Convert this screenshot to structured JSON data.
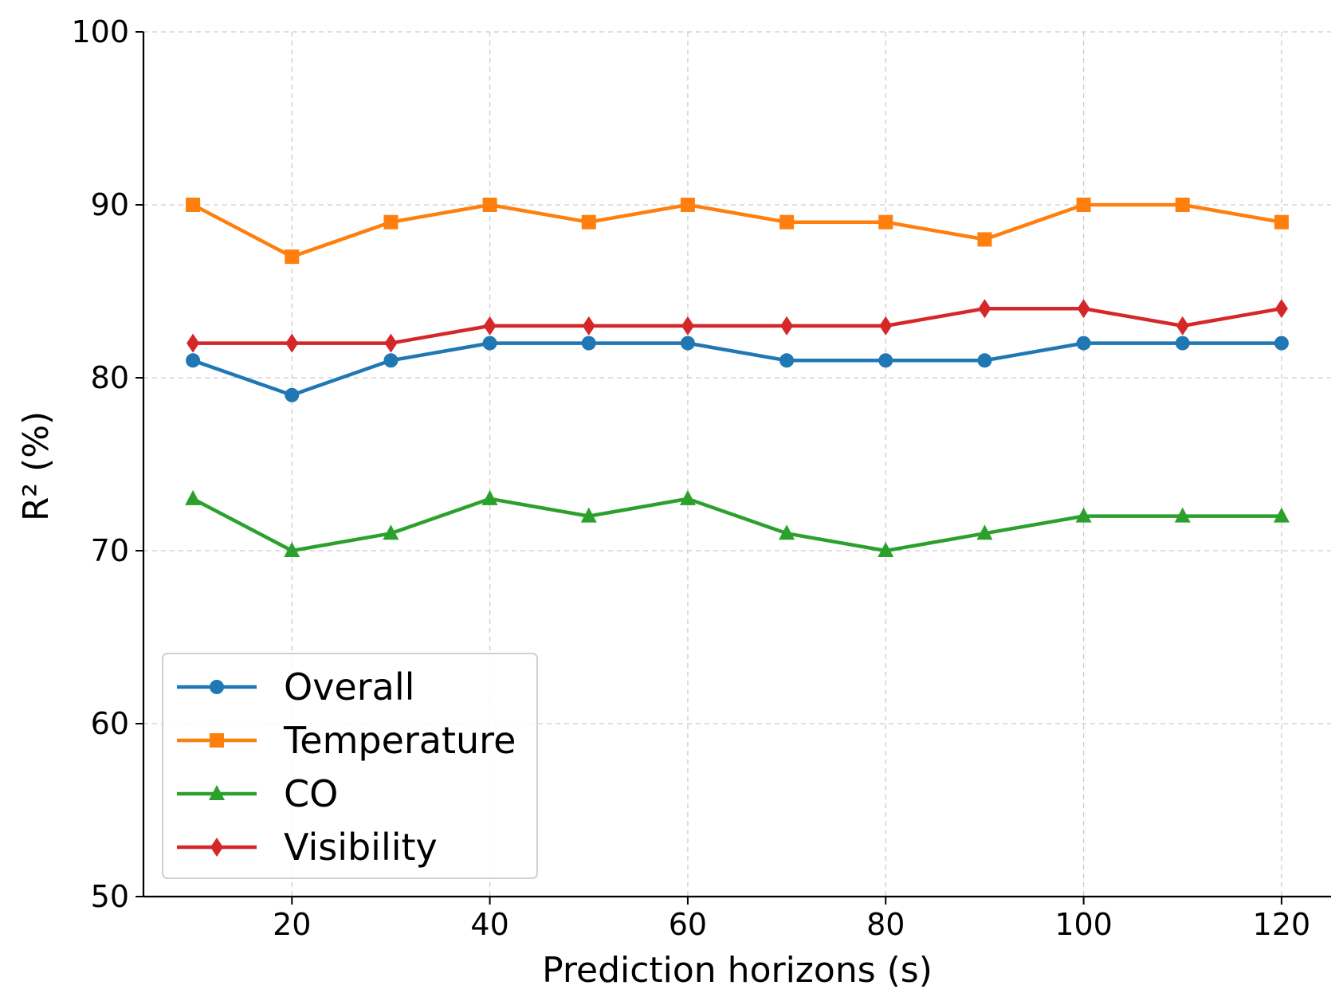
{
  "chart_data": {
    "type": "line",
    "title": "",
    "xlabel": "Prediction horizons (s)",
    "ylabel": "R² (%)",
    "xlim": [
      5,
      125
    ],
    "ylim": [
      50,
      100
    ],
    "xticks": [
      20,
      40,
      60,
      80,
      100,
      120
    ],
    "yticks": [
      50,
      60,
      70,
      80,
      90,
      100
    ],
    "xtick_labels": [
      "20",
      "40",
      "60",
      "80",
      "100",
      "120"
    ],
    "ytick_labels": [
      "50",
      "60",
      "70",
      "80",
      "90",
      "100"
    ],
    "grid": true,
    "legend_position": "lower-left",
    "x": [
      10,
      20,
      30,
      40,
      50,
      60,
      70,
      80,
      90,
      100,
      110,
      120
    ],
    "series": [
      {
        "name": "Overall",
        "color": "#1f77b4",
        "marker": "circle",
        "values": [
          81,
          79,
          81,
          82,
          82,
          82,
          81,
          81,
          81,
          82,
          82,
          82
        ]
      },
      {
        "name": "Temperature",
        "color": "#ff7f0e",
        "marker": "square",
        "values": [
          90,
          87,
          89,
          90,
          89,
          90,
          89,
          89,
          88,
          90,
          90,
          89
        ]
      },
      {
        "name": "CO",
        "color": "#2ca02c",
        "marker": "triangle",
        "values": [
          73,
          70,
          71,
          73,
          72,
          73,
          71,
          70,
          71,
          72,
          72,
          72
        ]
      },
      {
        "name": "Visibility",
        "color": "#d62728",
        "marker": "diamond",
        "values": [
          82,
          82,
          82,
          83,
          83,
          83,
          83,
          83,
          84,
          84,
          83,
          84
        ]
      }
    ]
  }
}
